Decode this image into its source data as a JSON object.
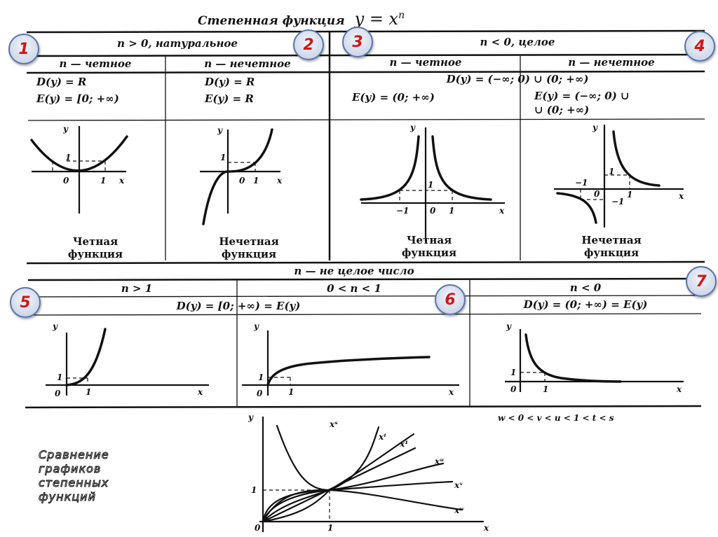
{
  "title": {
    "text": "Степенная функция",
    "formula_base": "y = x",
    "formula_exp": "n"
  },
  "badges": [
    "1",
    "2",
    "3",
    "4",
    "5",
    "6",
    "7"
  ],
  "top": {
    "natural_header": "n > 0, натуральное",
    "negative_header": "n < 0, целое",
    "col1": {
      "type": "n — четное",
      "domain": "D(y) = R",
      "range": "E(y) = [0; +∞)",
      "caption1": "Четная",
      "caption2": "функция"
    },
    "col2": {
      "type": "n — нечетное",
      "domain": "D(y) = R",
      "range": "E(y) = R",
      "caption1": "Нечетная",
      "caption2": "функция"
    },
    "neg_domain": "D(y) = (−∞; 0) ∪ (0; +∞)",
    "col3": {
      "type": "n — четное",
      "range": "E(y) = (0; +∞)",
      "caption1": "Четная",
      "caption2": "функция"
    },
    "col4": {
      "type": "n — нечетное",
      "range1": "E(y) = (−∞; 0) ∪",
      "range2": "∪ (0; +∞)",
      "caption1": "Нечетная",
      "caption2": "функция"
    }
  },
  "middle": {
    "header": "n — не целое число",
    "sub1": "n > 1",
    "sub2": "0 < n < 1",
    "sub3": "n < 0",
    "domain1": "D(y) = [0; +∞) = E(y)",
    "domain3": "D(y) = (0; +∞) = E(y)"
  },
  "bottom": {
    "caption": [
      "Сравнение",
      "графиков",
      "степенных",
      "функций"
    ],
    "inequality": "w < 0 < v < u < 1 < t < s",
    "curve_labels": {
      "s": "xˢ",
      "t": "xᵗ",
      "one": "x¹",
      "u": "xᵘ",
      "v": "xᵛ",
      "w": "xʷ"
    }
  },
  "axis_labels": {
    "x": "x",
    "y": "y",
    "zero": "0",
    "one": "1",
    "minus_one": "−1"
  }
}
